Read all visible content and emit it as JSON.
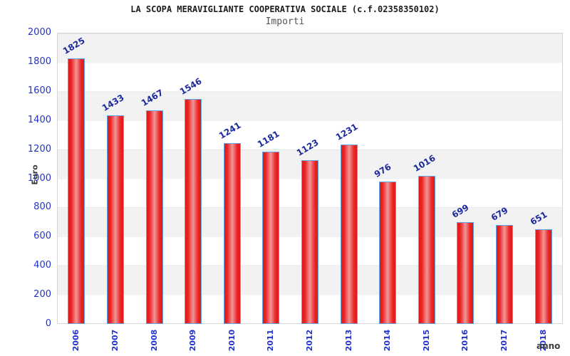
{
  "header": {
    "title": "LA SCOPA MERAVIGLIANTE COOPERATIVA SOCIALE (c.f.02358350102)",
    "subtitle": "Importi"
  },
  "axes": {
    "y_title": "Euro",
    "x_title": "anno"
  },
  "chart_data": {
    "type": "bar",
    "title": "LA SCOPA MERAVIGLIANTE COOPERATIVA SOCIALE (c.f.02358350102)",
    "subtitle": "Importi",
    "xlabel": "anno",
    "ylabel": "Euro",
    "categories": [
      "2006",
      "2007",
      "2008",
      "2009",
      "2010",
      "2011",
      "2012",
      "2013",
      "2014",
      "2015",
      "2016",
      "2017",
      "2018"
    ],
    "values": [
      1825,
      1433,
      1467,
      1546,
      1241,
      1181,
      1123,
      1231,
      976,
      1016,
      699,
      679,
      651
    ],
    "ylim": [
      0,
      2000
    ],
    "ytick_step": 200,
    "yticks": [
      0,
      200,
      400,
      600,
      800,
      1000,
      1200,
      1400,
      1600,
      1800,
      2000
    ],
    "grid": "alternating horizontal gray/white bands",
    "legend": "none",
    "bar_labels_rotated": true,
    "colors": {
      "bar_fill": "#ee2222",
      "bar_fill_highlight": "#ef9898",
      "bar_border": "#61a6e4",
      "tick_label": "#2233cc",
      "value_label": "#1c2a9e",
      "band_gray": "#f2f2f2",
      "band_white": "#ffffff",
      "axis_title": "#3c3c3c",
      "title_text": "#1c1c1c",
      "subtitle_text": "#555555"
    }
  }
}
